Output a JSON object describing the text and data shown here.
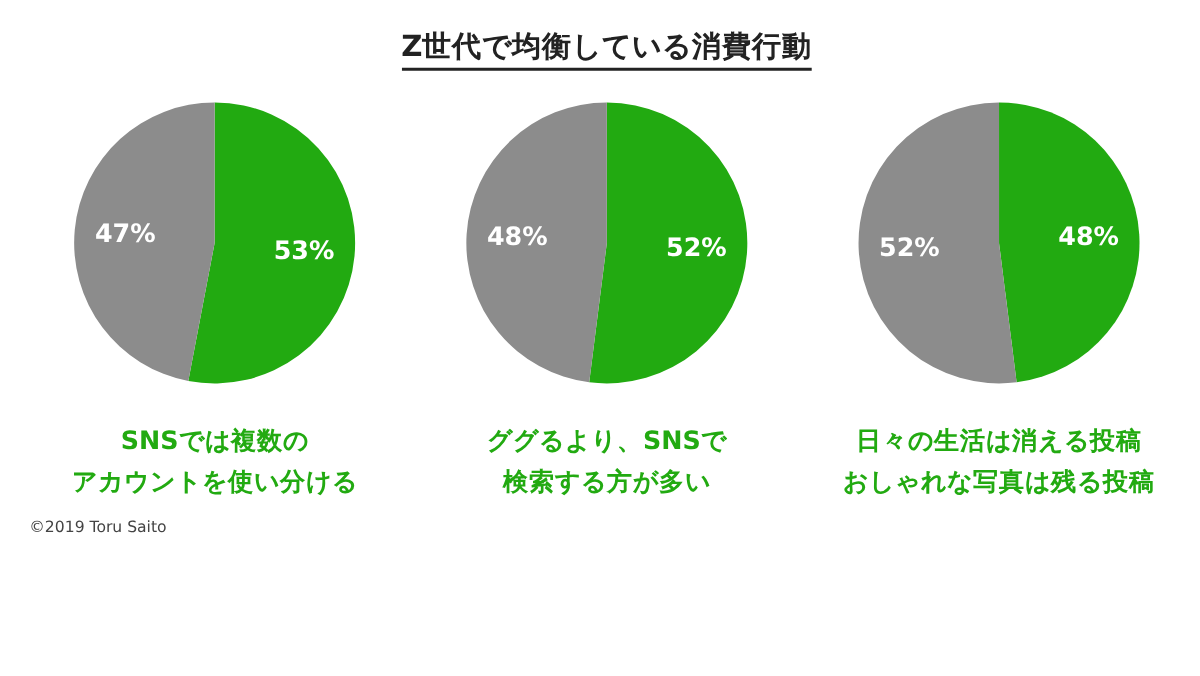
{
  "chart_data": [
    {
      "type": "pie",
      "categories": [
        null,
        null
      ],
      "values": [
        53,
        47
      ],
      "value_labels": [
        "53%",
        "47%"
      ],
      "colors": [
        "#22aa11",
        "#8c8c8c"
      ],
      "annotations": [
        "SNSでは複数の",
        "アカウントを使い分ける",
        "©2019 Toru Saito"
      ]
    },
    {
      "type": "pie",
      "title": "Z世代で均衡している消費行動",
      "categories": [
        null,
        null
      ],
      "values": [
        52,
        48
      ],
      "value_labels": [
        "52%",
        "48%"
      ],
      "colors": [
        "#22aa11",
        "#8c8c8c"
      ],
      "annotations": [
        "ググるより、SNSで",
        "検索する方が多い"
      ]
    },
    {
      "type": "pie",
      "categories": [
        null,
        null
      ],
      "values": [
        48,
        52
      ],
      "value_labels": [
        "48%",
        "52%"
      ],
      "colors": [
        "#22aa11",
        "#8c8c8c"
      ],
      "annotations": [
        "日々の生活は消える投稿",
        "おしゃれな写真は残る投稿"
      ]
    }
  ]
}
